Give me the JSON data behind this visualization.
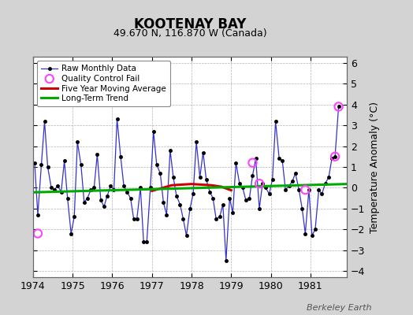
{
  "title": "KOOTENAY BAY",
  "subtitle": "49.670 N, 116.870 W (Canada)",
  "ylabel": "Temperature Anomaly (°C)",
  "watermark": "Berkeley Earth",
  "background_color": "#d3d3d3",
  "plot_bg_color": "#ffffff",
  "xlim": [
    1974.0,
    1981.92
  ],
  "ylim": [
    -4.3,
    6.3
  ],
  "yticks": [
    -4,
    -3,
    -2,
    -1,
    0,
    1,
    2,
    3,
    4,
    5,
    6
  ],
  "xticks": [
    1974,
    1975,
    1976,
    1977,
    1978,
    1979,
    1980,
    1981
  ],
  "raw_x": [
    1974.04,
    1974.12,
    1974.21,
    1974.29,
    1974.37,
    1974.46,
    1974.54,
    1974.62,
    1974.71,
    1974.79,
    1974.87,
    1974.96,
    1975.04,
    1975.12,
    1975.21,
    1975.29,
    1975.37,
    1975.46,
    1975.54,
    1975.62,
    1975.71,
    1975.79,
    1975.87,
    1975.96,
    1976.04,
    1976.12,
    1976.21,
    1976.29,
    1976.37,
    1976.46,
    1976.54,
    1976.62,
    1976.71,
    1976.79,
    1976.87,
    1976.96,
    1977.04,
    1977.12,
    1977.21,
    1977.29,
    1977.37,
    1977.46,
    1977.54,
    1977.62,
    1977.71,
    1977.79,
    1977.87,
    1977.96,
    1978.04,
    1978.12,
    1978.21,
    1978.29,
    1978.37,
    1978.46,
    1978.54,
    1978.62,
    1978.71,
    1978.79,
    1978.87,
    1978.96,
    1979.04,
    1979.12,
    1979.21,
    1979.29,
    1979.37,
    1979.46,
    1979.54,
    1979.62,
    1979.71,
    1979.79,
    1979.87,
    1979.96,
    1980.04,
    1980.12,
    1980.21,
    1980.29,
    1980.37,
    1980.46,
    1980.54,
    1980.62,
    1980.71,
    1980.79,
    1980.87,
    1980.96,
    1981.04,
    1981.12,
    1981.21,
    1981.29,
    1981.37,
    1981.46,
    1981.54,
    1981.62,
    1981.71
  ],
  "raw_y": [
    1.2,
    -1.3,
    1.1,
    3.2,
    1.0,
    0.0,
    -0.1,
    0.1,
    -0.2,
    1.3,
    -0.5,
    -2.2,
    -1.4,
    2.2,
    1.1,
    -0.7,
    -0.5,
    -0.1,
    0.0,
    1.6,
    -0.6,
    -0.9,
    -0.4,
    0.1,
    -0.1,
    3.3,
    1.5,
    0.1,
    -0.2,
    -0.5,
    -1.5,
    -1.5,
    0.0,
    -2.6,
    -2.6,
    0.0,
    2.7,
    1.1,
    0.7,
    -0.7,
    -1.3,
    1.8,
    0.5,
    -0.4,
    -0.8,
    -1.5,
    -2.3,
    -1.0,
    -0.3,
    2.2,
    0.5,
    1.7,
    0.4,
    -0.2,
    -0.5,
    -1.5,
    -1.4,
    -0.8,
    -3.5,
    -0.5,
    -1.2,
    1.2,
    0.2,
    0.0,
    -0.6,
    -0.5,
    0.6,
    1.4,
    -1.0,
    0.2,
    0.0,
    -0.3,
    0.4,
    3.2,
    1.4,
    1.3,
    -0.1,
    0.1,
    0.3,
    0.7,
    -0.1,
    -1.0,
    -2.2,
    -0.1,
    -2.3,
    -2.0,
    -0.1,
    -0.3,
    0.2,
    0.5,
    1.4,
    1.5,
    3.9
  ],
  "qc_fail_x": [
    1974.12,
    1979.54,
    1979.71,
    1980.87,
    1981.62,
    1981.71
  ],
  "qc_fail_y": [
    -2.2,
    1.2,
    0.2,
    -0.1,
    1.5,
    3.9
  ],
  "moving_avg_x": [
    1977.0,
    1977.5,
    1978.0,
    1978.5,
    1978.75,
    1979.0
  ],
  "moving_avg_y": [
    -0.15,
    0.12,
    0.18,
    0.12,
    0.05,
    -0.12
  ],
  "trend_x": [
    1974.0,
    1981.92
  ],
  "trend_y": [
    -0.22,
    0.18
  ],
  "line_color": "#3333cc",
  "marker_color": "#000000",
  "qc_color": "#ff44ff",
  "moving_avg_color": "#cc0000",
  "trend_color": "#00aa00",
  "grid_color": "#aaaaaa"
}
